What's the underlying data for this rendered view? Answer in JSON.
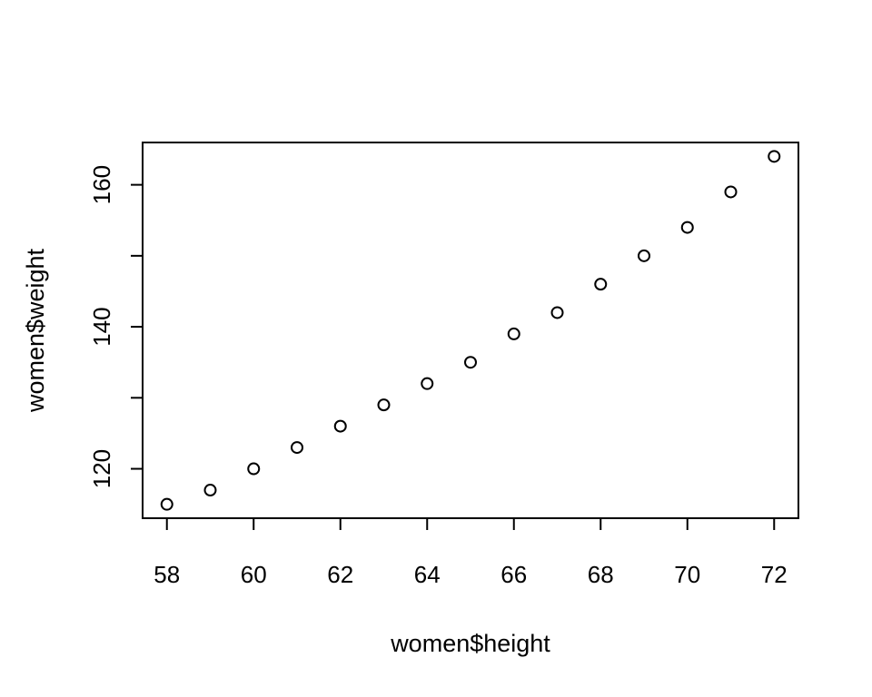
{
  "chart_data": {
    "type": "scatter",
    "title": "",
    "xlabel": "women$height",
    "ylabel": "women$weight",
    "x": [
      58,
      59,
      60,
      61,
      62,
      63,
      64,
      65,
      66,
      67,
      68,
      69,
      70,
      71,
      72
    ],
    "y": [
      115,
      117,
      120,
      123,
      126,
      129,
      132,
      135,
      139,
      142,
      146,
      150,
      154,
      159,
      164
    ],
    "xlim": [
      57.44,
      72.56
    ],
    "ylim": [
      113.04,
      165.96
    ],
    "x_ticks": [
      58,
      60,
      62,
      64,
      66,
      68,
      70,
      72
    ],
    "x_tick_labels": [
      "58",
      "60",
      "62",
      "64",
      "66",
      "68",
      "70",
      "72"
    ],
    "y_ticks": [
      120,
      130,
      140,
      150,
      160
    ],
    "y_tick_labels": [
      "120",
      "",
      "140",
      "",
      "160"
    ],
    "grid": false,
    "legend": "none",
    "marker": "open-circle",
    "color": "#000000"
  }
}
